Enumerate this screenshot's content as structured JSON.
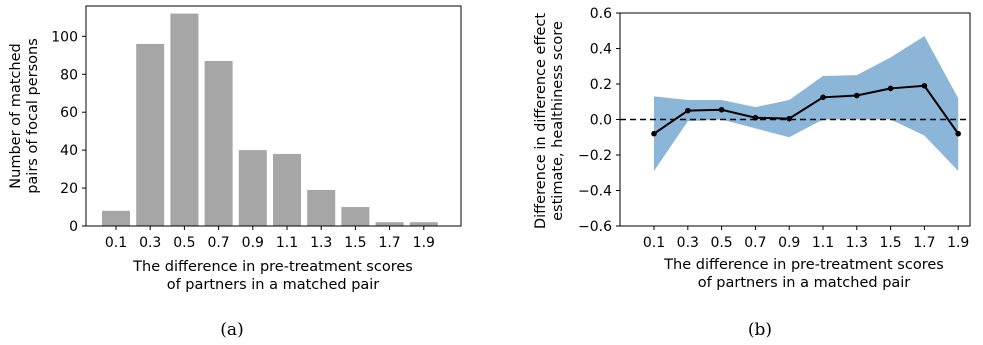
{
  "chart_data": [
    {
      "type": "bar",
      "panel": "(a)",
      "categories": [
        "0.1",
        "0.3",
        "0.5",
        "0.7",
        "0.9",
        "1.1",
        "1.3",
        "1.5",
        "1.7",
        "1.9"
      ],
      "values": [
        8,
        96,
        112,
        87,
        40,
        38,
        19,
        10,
        2,
        2
      ],
      "xlabel": [
        "The difference in pre-treatment scores",
        "of partners in a matched pair"
      ],
      "ylabel": [
        "Number of matched",
        "pairs of focal persons"
      ],
      "ylim": [
        0,
        116
      ],
      "yticks": [
        0,
        20,
        40,
        60,
        80,
        100
      ],
      "bar_color": "#a6a6a6",
      "grid": false
    },
    {
      "type": "line",
      "panel": "(b)",
      "x": [
        "0.1",
        "0.3",
        "0.5",
        "0.7",
        "0.9",
        "1.1",
        "1.3",
        "1.5",
        "1.7",
        "1.9"
      ],
      "series": [
        {
          "values": [
            -0.08,
            0.05,
            0.055,
            0.01,
            0.005,
            0.125,
            0.135,
            0.175,
            0.19,
            -0.08
          ],
          "lower": [
            -0.29,
            -0.01,
            0.0,
            -0.05,
            -0.1,
            0.0,
            0.0,
            0.0,
            -0.09,
            -0.29
          ],
          "upper": [
            0.13,
            0.11,
            0.11,
            0.07,
            0.11,
            0.245,
            0.25,
            0.35,
            0.47,
            0.12
          ],
          "color": "#000000",
          "band_color": "#8bb6d8"
        }
      ],
      "reference_line": {
        "y": 0,
        "style": "dashed"
      },
      "xlabel": [
        "The difference in pre-treatment scores",
        "of partners in a matched pair"
      ],
      "ylabel": [
        "Difference in difference effect",
        "estimate, healthiness score"
      ],
      "ylim": [
        -0.6,
        0.6
      ],
      "yticks": [
        "−0.6",
        "−0.4",
        "−0.2",
        "0.0",
        "0.2",
        "0.4",
        "0.6"
      ],
      "grid": false
    }
  ],
  "captions": [
    "(a)",
    "(b)"
  ]
}
